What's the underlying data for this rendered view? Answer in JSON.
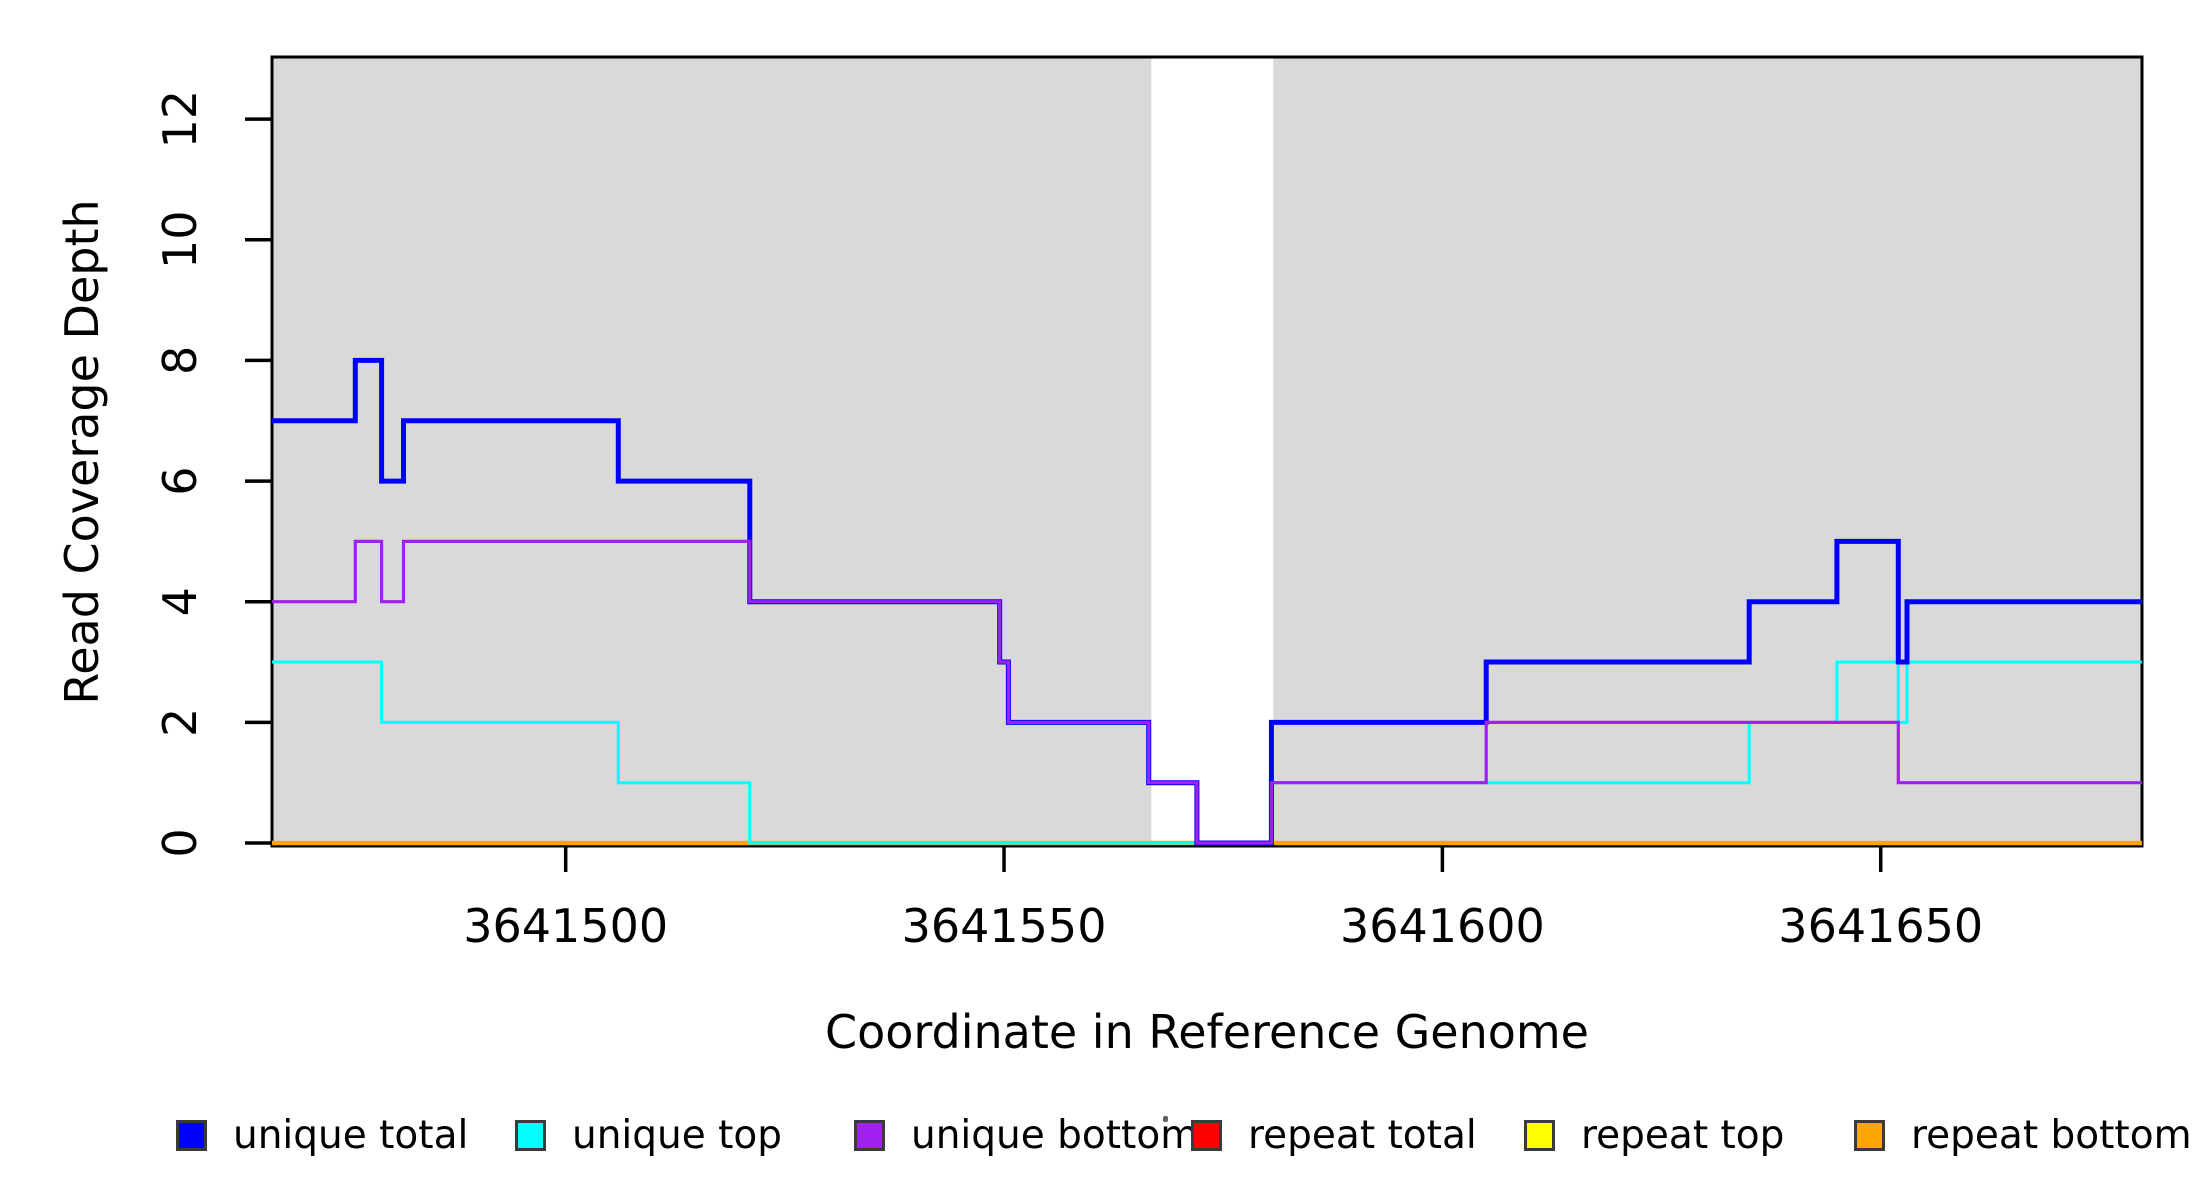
{
  "figure": {
    "background": "#ffffff",
    "plot_bg_shading_color": "#d9d9d9",
    "box_color": "#000000"
  },
  "chart_data": {
    "type": "line",
    "subtype": "step-coverage",
    "title": "",
    "xlabel": "Coordinate in Reference Genome",
    "ylabel": "Read Coverage Depth",
    "xlim": [
      3641466.5,
      3641679.8
    ],
    "ylim": [
      0,
      13.03
    ],
    "grid": false,
    "legend_position": "bottom",
    "x_ticks": [
      3641500,
      3641550,
      3641600,
      3641650
    ],
    "x_tick_labels": [
      "3641500",
      "3641550",
      "3641600",
      "3641650"
    ],
    "y_ticks": [
      0,
      2,
      4,
      6,
      8,
      10,
      12
    ],
    "y_tick_labels": [
      "0",
      "2",
      "4",
      "6",
      "8",
      "10",
      "12"
    ],
    "shaded_regions": [
      {
        "from": 3641466.5,
        "to": 3641566.8
      },
      {
        "from": 3641580.7,
        "to": 3641679.8
      }
    ],
    "series": [
      {
        "name": "unique total",
        "color": "#0000ff",
        "line_width": 5,
        "z": 5,
        "points": [
          [
            3641466.5,
            7
          ],
          [
            3641476,
            8
          ],
          [
            3641479,
            6
          ],
          [
            3641481.5,
            7
          ],
          [
            3641506,
            6
          ],
          [
            3641521,
            4
          ],
          [
            3641549.5,
            3
          ],
          [
            3641550.5,
            2
          ],
          [
            3641566.5,
            1
          ],
          [
            3641572,
            0
          ],
          [
            3641580.5,
            2
          ],
          [
            3641605,
            3
          ],
          [
            3641635,
            4
          ],
          [
            3641645,
            5
          ],
          [
            3641652,
            3
          ],
          [
            3641653,
            4
          ]
        ]
      },
      {
        "name": "unique top",
        "color": "#00ffff",
        "line_width": 3,
        "z": 4,
        "points": [
          [
            3641466.5,
            3
          ],
          [
            3641479,
            2
          ],
          [
            3641506,
            1
          ],
          [
            3641521,
            0
          ],
          [
            3641580.5,
            1
          ],
          [
            3641635,
            2
          ],
          [
            3641645,
            3
          ],
          [
            3641652,
            2
          ],
          [
            3641653,
            3
          ]
        ]
      },
      {
        "name": "unique bottom",
        "color": "#a020f0",
        "line_width": 3.2,
        "z": 6,
        "points": [
          [
            3641466.5,
            4
          ],
          [
            3641476,
            5
          ],
          [
            3641479,
            4
          ],
          [
            3641481.5,
            5
          ],
          [
            3641521,
            4
          ],
          [
            3641549.5,
            3
          ],
          [
            3641550.5,
            2
          ],
          [
            3641566.5,
            1
          ],
          [
            3641572,
            0
          ],
          [
            3641580.5,
            1
          ],
          [
            3641605,
            2
          ],
          [
            3641652,
            1
          ]
        ]
      },
      {
        "name": "repeat total",
        "color": "#ff0000",
        "line_width": 3,
        "z": 1,
        "points": [
          [
            3641466.5,
            0
          ]
        ]
      },
      {
        "name": "repeat top",
        "color": "#ffff00",
        "line_width": 3,
        "z": 2,
        "points": [
          [
            3641466.5,
            0
          ]
        ]
      },
      {
        "name": "repeat bottom",
        "color": "#ffa500",
        "line_width": 4.5,
        "z": 3,
        "points": [
          [
            3641466.5,
            0
          ]
        ]
      }
    ]
  },
  "legend": {
    "items": [
      {
        "label": "unique total",
        "color": "#0000ff"
      },
      {
        "label": "unique top",
        "color": "#00ffff"
      },
      {
        "label": "unique bottom",
        "color": "#a020f0"
      },
      {
        "label": "repeat total",
        "color": "#ff0000"
      },
      {
        "label": "repeat top",
        "color": "#ffff00"
      },
      {
        "label": "repeat bottom",
        "color": "#ffa500"
      }
    ]
  }
}
